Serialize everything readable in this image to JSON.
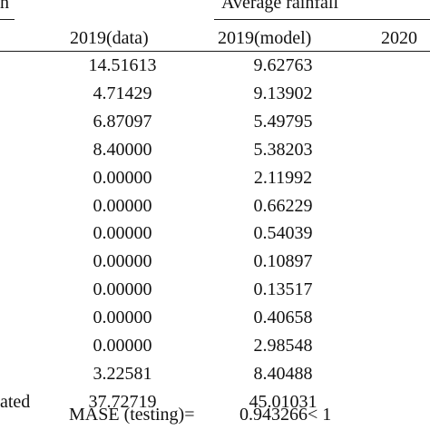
{
  "header": {
    "left_fragment": "n",
    "group_title": "Average rainfall",
    "columns": [
      "2019(data)",
      "2019(model)",
      "2020"
    ]
  },
  "rows": [
    {
      "label": "",
      "data": "14.51613",
      "model": "9.62763"
    },
    {
      "label": "",
      "data": "4.71429",
      "model": "9.13902"
    },
    {
      "label": "",
      "data": "6.87097",
      "model": "5.49795"
    },
    {
      "label": "",
      "data": "8.40000",
      "model": "5.38203"
    },
    {
      "label": "",
      "data": "0.00000",
      "model": "2.11992"
    },
    {
      "label": "",
      "data": "0.00000",
      "model": "0.66229"
    },
    {
      "label": "",
      "data": "0.00000",
      "model": "0.54039"
    },
    {
      "label": "",
      "data": "0.00000",
      "model": "0.10897"
    },
    {
      "label": "",
      "data": "0.00000",
      "model": "0.13517"
    },
    {
      "label": "",
      "data": "0.00000",
      "model": "0.40658"
    },
    {
      "label": "",
      "data": "0.00000",
      "model": "2.98548"
    },
    {
      "label": "",
      "data": "3.22581",
      "model": "8.40488"
    },
    {
      "label": "ated",
      "data": "37.72719",
      "model": "45.01031"
    }
  ],
  "footer": {
    "mase_label": "MASE (testing)=",
    "mase_value": "0.943266< 1"
  }
}
